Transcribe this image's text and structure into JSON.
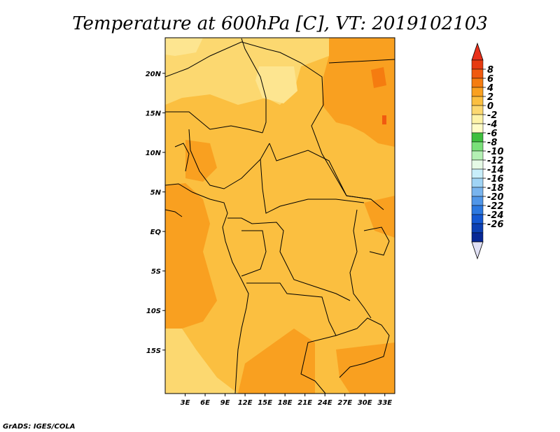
{
  "title": "Temperature at 600hPa [C], VT: 2019102103",
  "credit": "GrADS: IGES/COLA",
  "map": {
    "lon_range": [
      0,
      34.5
    ],
    "lat_range": [
      -20.5,
      24.5
    ],
    "x_ticks": [
      "3E",
      "6E",
      "9E",
      "12E",
      "15E",
      "18E",
      "21E",
      "24E",
      "27E",
      "30E",
      "33E"
    ],
    "y_ticks": [
      "20N",
      "15N",
      "10N",
      "5N",
      "EQ",
      "5S",
      "10S",
      "15S"
    ],
    "dominant_values": "0 to 4 C across most of the domain, locally 4 to 6 C"
  },
  "colorbar": {
    "labels": [
      "8",
      "6",
      "4",
      "2",
      "0",
      "-2",
      "-4",
      "-6",
      "-8",
      "-10",
      "-12",
      "-14",
      "-16",
      "-18",
      "-20",
      "-22",
      "-24",
      "-26"
    ],
    "colors": [
      "#e63a10",
      "#f05a10",
      "#f57c10",
      "#f9a020",
      "#fbbf40",
      "#fcd870",
      "#fef3a8",
      "#fffcc8",
      "#3fbf3f",
      "#7ae07a",
      "#b4f0b4",
      "#e6fae6",
      "#c8eefa",
      "#a0d4f5",
      "#78b4ee",
      "#5096e8",
      "#2c78e0",
      "#1458d2",
      "#0c40b4",
      "#082896"
    ],
    "top_color": "#e8301a",
    "bottom_color": "#e0e0f4"
  }
}
